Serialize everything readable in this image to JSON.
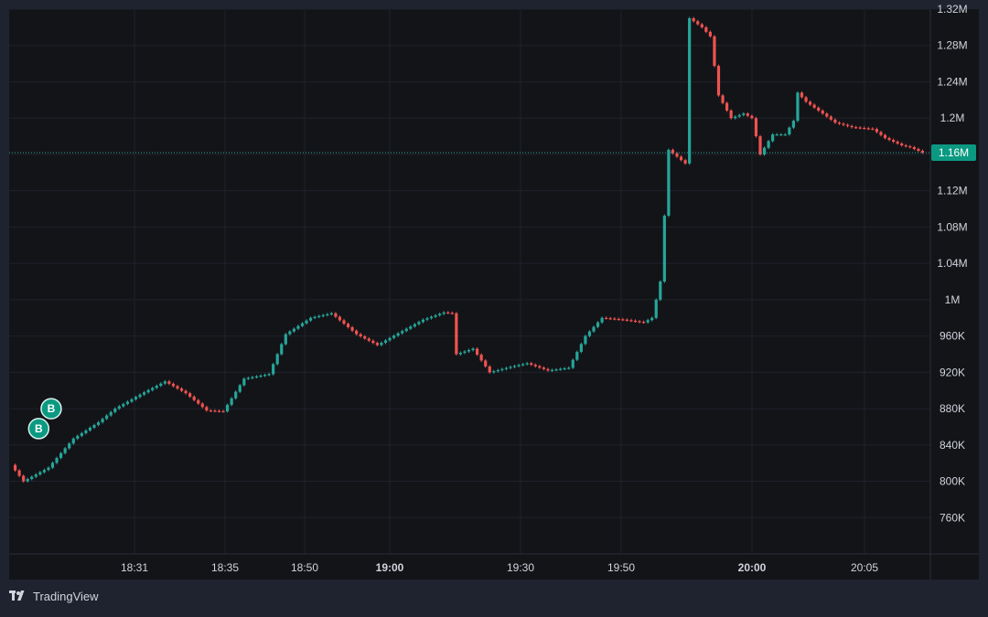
{
  "colors": {
    "frame": "#1f2330",
    "background": "#131418",
    "grid": "#1f222b",
    "axis_text": "#d1d4dc",
    "up": "#26a69a",
    "down": "#ef5350",
    "price_badge": "#0b9981",
    "price_line": "#26a69a",
    "marker": "#0b9981"
  },
  "footer": {
    "brand": "TradingView",
    "logo_icon": "tradingview-logo-icon"
  },
  "chart_data": {
    "type": "candlestick",
    "y_axis": {
      "ticks": [
        "1.32M",
        "1.28M",
        "1.24M",
        "1.2M",
        "1.16M",
        "1.12M",
        "1.08M",
        "1.04M",
        "1M",
        "960K",
        "920K",
        "880K",
        "840K",
        "800K",
        "760K"
      ],
      "tick_values": [
        1320000,
        1280000,
        1240000,
        1200000,
        1160000,
        1120000,
        1080000,
        1040000,
        1000000,
        960000,
        920000,
        880000,
        840000,
        800000,
        760000
      ],
      "range": [
        720000,
        1320000
      ]
    },
    "x_axis": {
      "labels": [
        "18:31",
        "18:35",
        "18:50",
        "19:00",
        "19:30",
        "19:50",
        "20:00",
        "20:05"
      ],
      "bold": [
        false,
        false,
        false,
        true,
        false,
        false,
        true,
        false
      ]
    },
    "grid": true,
    "last_price": {
      "label": "1.16M",
      "value": 1162000
    },
    "markers": [
      {
        "label": "B",
        "time_index": 6,
        "value": 858000
      },
      {
        "label": "B",
        "time_index": 9,
        "value": 880000
      }
    ],
    "anchors": [
      [
        0,
        818000
      ],
      [
        3,
        800000
      ],
      [
        9,
        815000
      ],
      [
        15,
        847000
      ],
      [
        21,
        865000
      ],
      [
        25,
        880000
      ],
      [
        32,
        898000
      ],
      [
        37,
        910000
      ],
      [
        42,
        897000
      ],
      [
        47,
        878000
      ],
      [
        51,
        877000
      ],
      [
        56,
        913000
      ],
      [
        62,
        918000
      ],
      [
        66,
        962000
      ],
      [
        72,
        980000
      ],
      [
        77,
        985000
      ],
      [
        83,
        962000
      ],
      [
        88,
        950000
      ],
      [
        93,
        963000
      ],
      [
        99,
        978000
      ],
      [
        104,
        986000
      ],
      [
        106,
        985000
      ],
      [
        107,
        940000
      ],
      [
        111,
        946000
      ],
      [
        115,
        920000
      ],
      [
        120,
        926000
      ],
      [
        124,
        930000
      ],
      [
        129,
        922000
      ],
      [
        134,
        925000
      ],
      [
        138,
        960000
      ],
      [
        142,
        980000
      ],
      [
        147,
        978000
      ],
      [
        152,
        975000
      ],
      [
        154,
        980000
      ],
      [
        156,
        1020000
      ],
      [
        158,
        1165000
      ],
      [
        162,
        1150000
      ],
      [
        163,
        1310000
      ],
      [
        166,
        1300000
      ],
      [
        168,
        1290000
      ],
      [
        170,
        1225000
      ],
      [
        173,
        1200000
      ],
      [
        176,
        1205000
      ],
      [
        178,
        1200000
      ],
      [
        180,
        1160000
      ],
      [
        183,
        1182000
      ],
      [
        186,
        1182000
      ],
      [
        188,
        1197000
      ],
      [
        189,
        1228000
      ],
      [
        191,
        1218000
      ],
      [
        195,
        1205000
      ],
      [
        198,
        1195000
      ],
      [
        202,
        1190000
      ],
      [
        207,
        1188000
      ],
      [
        210,
        1178000
      ],
      [
        214,
        1170000
      ],
      [
        216,
        1168000
      ],
      [
        219,
        1162000
      ]
    ]
  }
}
